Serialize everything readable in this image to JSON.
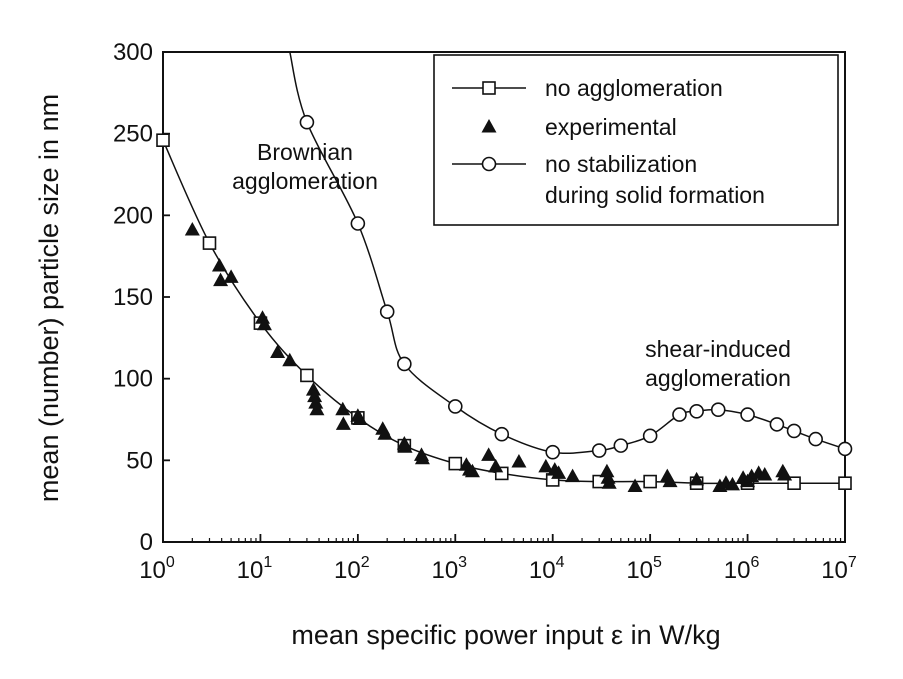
{
  "chart_data": {
    "type": "scatter",
    "xlabel": "mean specific power input ε in W/kg",
    "ylabel": "mean (number) particle size in nm",
    "xscale": "log",
    "xlim": [
      1,
      10000000
    ],
    "ylim": [
      0,
      300
    ],
    "y_ticks": [
      "0",
      "50",
      "100",
      "150",
      "200",
      "250",
      "300"
    ],
    "x_ticks": [
      {
        "base": "10",
        "exp": "0"
      },
      {
        "base": "10",
        "exp": "1"
      },
      {
        "base": "10",
        "exp": "2"
      },
      {
        "base": "10",
        "exp": "3"
      },
      {
        "base": "10",
        "exp": "4"
      },
      {
        "base": "10",
        "exp": "5"
      },
      {
        "base": "10",
        "exp": "6"
      },
      {
        "base": "10",
        "exp": "7"
      }
    ],
    "legend_position": "top-right",
    "grid": false,
    "series": [
      {
        "name": "no agglomeration",
        "marker": "open-square",
        "line": true,
        "points": [
          [
            1,
            246
          ],
          [
            3,
            183
          ],
          [
            10,
            134
          ],
          [
            30,
            102
          ],
          [
            100,
            76
          ],
          [
            300,
            59
          ],
          [
            1000,
            48
          ],
          [
            3000,
            42
          ],
          [
            10000,
            38
          ],
          [
            30000,
            37
          ],
          [
            100000,
            37
          ],
          [
            300000,
            36
          ],
          [
            1000000,
            36
          ],
          [
            3000000,
            36
          ],
          [
            10000000,
            36
          ]
        ]
      },
      {
        "name": "experimental",
        "marker": "filled-triangle",
        "line": false,
        "points": [
          [
            2,
            191
          ],
          [
            3.8,
            169
          ],
          [
            3.9,
            160
          ],
          [
            5,
            162
          ],
          [
            10.5,
            137
          ],
          [
            11,
            133
          ],
          [
            15,
            116
          ],
          [
            20,
            111
          ],
          [
            35,
            93
          ],
          [
            36,
            89
          ],
          [
            37,
            85
          ],
          [
            38,
            81
          ],
          [
            70,
            81
          ],
          [
            71,
            72
          ],
          [
            100,
            77
          ],
          [
            105,
            75
          ],
          [
            180,
            69
          ],
          [
            190,
            66
          ],
          [
            300,
            60
          ],
          [
            305,
            58
          ],
          [
            450,
            53
          ],
          [
            460,
            51
          ],
          [
            1300,
            47
          ],
          [
            1400,
            44
          ],
          [
            1500,
            43
          ],
          [
            2200,
            53
          ],
          [
            2600,
            46
          ],
          [
            4500,
            49
          ],
          [
            8500,
            46
          ],
          [
            10500,
            44
          ],
          [
            11500,
            42
          ],
          [
            16000,
            40
          ],
          [
            36000,
            43
          ],
          [
            37000,
            39
          ],
          [
            38000,
            36
          ],
          [
            70000,
            34
          ],
          [
            150000,
            40
          ],
          [
            160000,
            37
          ],
          [
            300000,
            38
          ],
          [
            520000,
            34
          ],
          [
            600000,
            36
          ],
          [
            700000,
            35
          ],
          [
            900000,
            39
          ],
          [
            1000000,
            37
          ],
          [
            1100000,
            40
          ],
          [
            1300000,
            42
          ],
          [
            1500000,
            41
          ],
          [
            2300000,
            43
          ],
          [
            2400000,
            41
          ]
        ]
      },
      {
        "name": "no stabilization\nduring solid formation",
        "marker": "open-circle",
        "line": true,
        "points": [
          [
            30,
            257
          ],
          [
            100,
            195
          ],
          [
            200,
            141
          ],
          [
            300,
            109
          ],
          [
            1000,
            83
          ],
          [
            3000,
            66
          ],
          [
            10000,
            55
          ],
          [
            30000,
            56
          ],
          [
            50000,
            59
          ],
          [
            100000,
            65
          ],
          [
            200000,
            78
          ],
          [
            300000,
            80
          ],
          [
            500000,
            81
          ],
          [
            1000000,
            78
          ],
          [
            2000000,
            72
          ],
          [
            3000000,
            68
          ],
          [
            5000000,
            63
          ],
          [
            10000000,
            57
          ]
        ],
        "line_extends_to": [
          20,
          300
        ]
      }
    ],
    "annotations": [
      {
        "text": "Brownian\nagglomeration",
        "near_x": 100,
        "near_y": 250
      },
      {
        "text": "shear-induced\nagglomeration",
        "near_x": 500000,
        "near_y": 110
      }
    ]
  }
}
